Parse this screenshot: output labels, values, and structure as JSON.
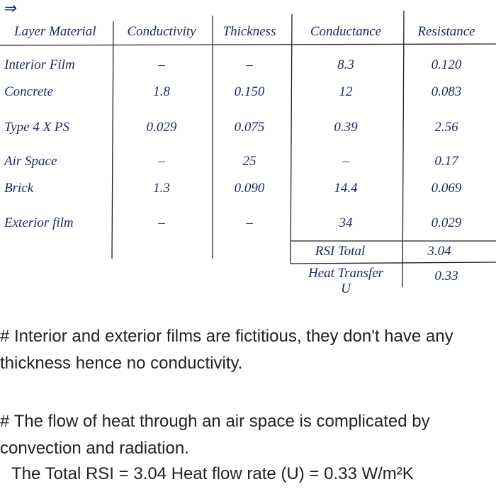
{
  "arrow": "⇒",
  "table": {
    "header": [
      "Layer Material",
      "Conductivity",
      "Thickness",
      "Conductance",
      "Resistance"
    ],
    "rows": [
      [
        "Interior Film",
        "–",
        "–",
        "8.3",
        "0.120"
      ],
      [
        "Concrete",
        "1.8",
        "0.150",
        "12",
        "0.083"
      ],
      [
        "Type 4 X PS",
        "0.029",
        "0.075",
        "0.39",
        "2.56"
      ],
      [
        "Air Space",
        "–",
        "25",
        "–",
        "0.17"
      ],
      [
        "Brick",
        "1.3",
        "0.090",
        "14.4",
        "0.069"
      ],
      [
        "Exterior film",
        "–",
        "–",
        "34",
        "0.029"
      ]
    ],
    "summary": [
      {
        "label": "RSI Total",
        "value": "3.04"
      },
      {
        "label": "Heat Transfer",
        "sublabel": "U",
        "value": "0.33"
      }
    ]
  },
  "notes": [
    "# Interior and exterior films are fictitious, they don't have any thickness hence no conductivity.",
    "# The flow of heat through an air space is complicated by convection and radiation.",
    "The Total RSI = 3.04 Heat flow rate (U) = 0.33 W/m²K"
  ]
}
